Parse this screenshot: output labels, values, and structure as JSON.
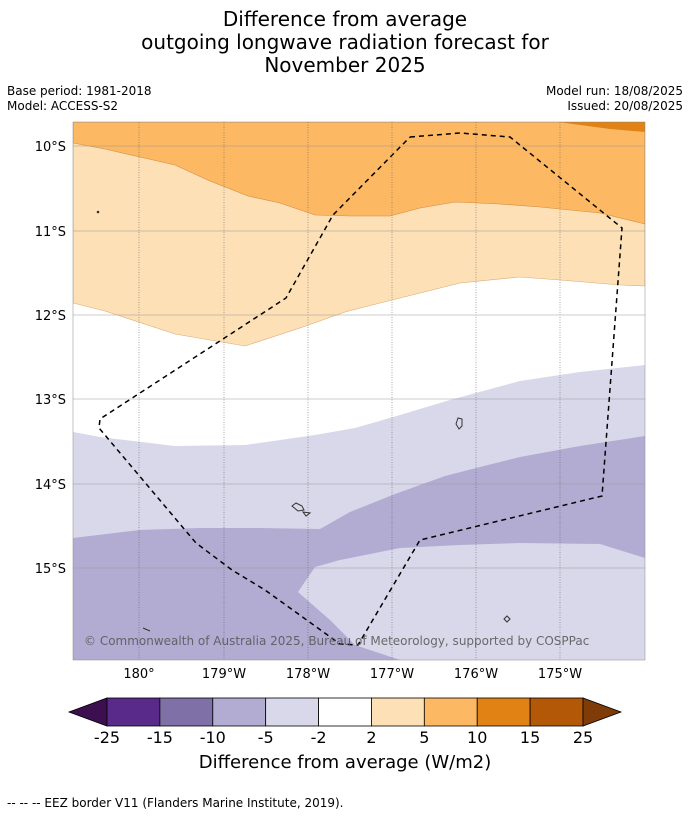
{
  "title": {
    "line1": "Difference from average",
    "line2": "outgoing longwave radiation forecast for",
    "line3": "November 2025"
  },
  "meta": {
    "base_period": "Base period: 1981-2018",
    "model": "Model: ACCESS-S2",
    "model_run": "Model run: 18/08/2025",
    "issued": "Issued: 20/08/2025"
  },
  "map": {
    "lon_labels": [
      "180°",
      "179°W",
      "178°W",
      "177°W",
      "176°W",
      "175°W"
    ],
    "lat_labels": [
      "10°S",
      "11°S",
      "12°S",
      "13°S",
      "14°S",
      "15°S"
    ],
    "copyright": "© Commonwealth of Australia 2025, Bureau of Meteorology, supported by COSPPac"
  },
  "colorbar": {
    "ticks": [
      "-25",
      "-15",
      "-10",
      "-5",
      "-2",
      "2",
      "5",
      "10",
      "15",
      "25"
    ],
    "colors": [
      "#3b0f50",
      "#5a2a8a",
      "#8070a8",
      "#b2acd2",
      "#d8d8ea",
      "#ffffff",
      "#fde0b6",
      "#fdb863",
      "#e08214",
      "#b35806",
      "#7f3b08"
    ],
    "label": "Difference from average (W/m2)"
  },
  "footer": "--  --  -- EEZ border V11 (Flanders Marine Institute, 2019)."
}
